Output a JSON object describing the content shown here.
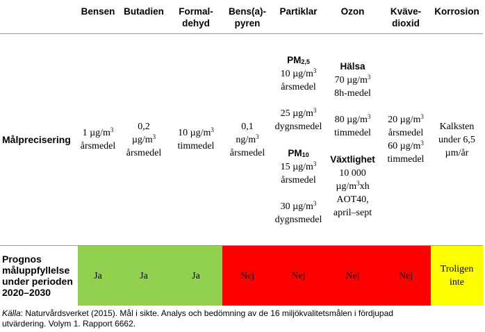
{
  "table": {
    "columns": [
      [
        "Bensen"
      ],
      [
        "Butadien"
      ],
      [
        "Formal-",
        "dehyd"
      ],
      [
        "Bens(a)-",
        "pyren"
      ],
      [
        "Partiklar"
      ],
      [
        "Ozon"
      ],
      [
        "Kväve-",
        "dioxid"
      ],
      [
        "Korrosion"
      ]
    ],
    "rows": [
      {
        "label": [
          "Målprecisering"
        ],
        "cells": [
          {
            "blocks": [
              [
                [
                  "1 µg/m",
                  {
                    "text": "3",
                    "style": "sup"
                  }
                ],
                [
                  "årsmedel"
                ]
              ]
            ]
          },
          {
            "blocks": [
              [
                [
                  "0,2"
                ],
                [
                  "µg/m",
                  {
                    "text": "3",
                    "style": "sup"
                  }
                ],
                [
                  "årsmedel"
                ]
              ]
            ]
          },
          {
            "blocks": [
              [
                [
                  "10 µg/m",
                  {
                    "text": "3",
                    "style": "sup"
                  }
                ],
                [
                  "timmedel"
                ]
              ]
            ]
          },
          {
            "blocks": [
              [
                [
                  "0,1"
                ],
                [
                  "ng/m",
                  {
                    "text": "3",
                    "style": "sup"
                  }
                ],
                [
                  "årsmedel"
                ]
              ]
            ]
          },
          {
            "blocks": [
              [
                [
                  {
                    "text": "PM",
                    "style": "bold"
                  },
                  {
                    "text": "2,5",
                    "style": "sub"
                  }
                ],
                [
                  "10 µg/m",
                  {
                    "text": "3",
                    "style": "sup"
                  }
                ],
                [
                  "årsmedel"
                ]
              ],
              [
                [
                  "25 µg/m",
                  {
                    "text": "3",
                    "style": "sup"
                  }
                ],
                [
                  "dygnsmedel"
                ]
              ],
              [
                [
                  {
                    "text": "PM",
                    "style": "bold"
                  },
                  {
                    "text": "10",
                    "style": "sub"
                  }
                ],
                [
                  "15 µg/m",
                  {
                    "text": "3",
                    "style": "sup"
                  }
                ],
                [
                  "årsmedel"
                ]
              ],
              [
                [
                  "30 µg/m",
                  {
                    "text": "3",
                    "style": "sup"
                  }
                ],
                [
                  "dygnsmedel"
                ]
              ]
            ]
          },
          {
            "blocks": [
              [
                [
                  {
                    "text": "Hälsa",
                    "style": "bold"
                  }
                ],
                [
                  "70 µg/m",
                  {
                    "text": "3",
                    "style": "sup"
                  }
                ],
                [
                  "8h-medel"
                ]
              ],
              [
                [
                  "80 µg/m",
                  {
                    "text": "3",
                    "style": "sup"
                  }
                ],
                [
                  "timmedel"
                ]
              ],
              [
                [
                  {
                    "text": "Växtlighet",
                    "style": "bold"
                  }
                ],
                [
                  "10 000"
                ],
                [
                  "µg/m",
                  {
                    "text": "3",
                    "style": "sup"
                  },
                  "xh"
                ],
                [
                  "AOT40,"
                ],
                [
                  "april–sept"
                ]
              ]
            ]
          },
          {
            "blocks": [
              [
                [
                  "20 µg/m",
                  {
                    "text": "3",
                    "style": "sup"
                  }
                ],
                [
                  "årsmedel"
                ],
                [
                  "60 µg/m",
                  {
                    "text": "3",
                    "style": "sup"
                  }
                ],
                [
                  "timmedel"
                ]
              ]
            ]
          },
          {
            "blocks": [
              [
                [
                  "Kalksten"
                ],
                [
                  "under 6,5"
                ],
                [
                  "µm/år"
                ]
              ]
            ]
          }
        ]
      },
      {
        "label": [
          "Prognos",
          "måluppfyllelse",
          "under perioden",
          "2020–2030"
        ],
        "cells": [
          {
            "blocks": [
              [
                [
                  "Ja"
                ]
              ]
            ],
            "color": "#92d050"
          },
          {
            "blocks": [
              [
                [
                  "Ja"
                ]
              ]
            ],
            "color": "#92d050"
          },
          {
            "blocks": [
              [
                [
                  "Ja"
                ]
              ]
            ],
            "color": "#92d050"
          },
          {
            "blocks": [
              [
                [
                  "Nej"
                ]
              ]
            ],
            "color": "#ff0000"
          },
          {
            "blocks": [
              [
                [
                  "Nej"
                ]
              ]
            ],
            "color": "#ff0000"
          },
          {
            "blocks": [
              [
                [
                  "Nej"
                ]
              ]
            ],
            "color": "#ff0000"
          },
          {
            "blocks": [
              [
                [
                  "Nej"
                ]
              ]
            ],
            "color": "#ff0000"
          },
          {
            "blocks": [
              [
                [
                  "Troligen"
                ],
                [
                  "inte"
                ]
              ]
            ],
            "color": "#ffff00"
          }
        ]
      }
    ],
    "source": [
      {
        "text": "Källa",
        "style": "italic"
      },
      ": Naturvårdsverket (2015). Mål i sikte. Analys och bedömning av de 16 miljökvalitetsmålen i fördjupad utvärdering. Volym 1. Rapport 6662."
    ]
  }
}
